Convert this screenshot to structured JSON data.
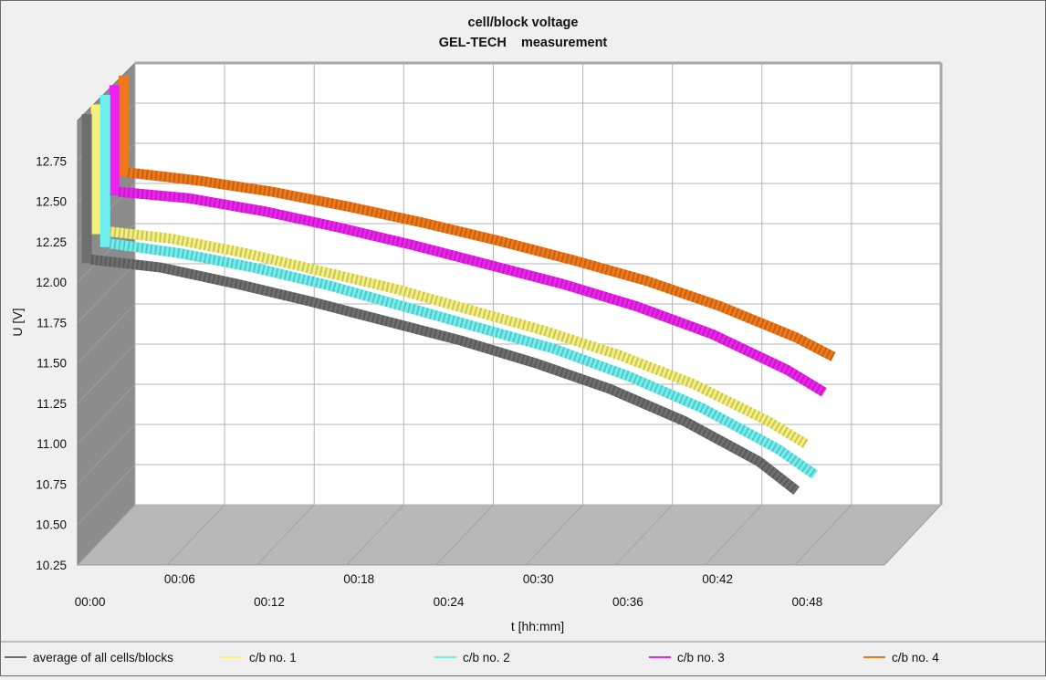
{
  "chart_data": {
    "type": "line",
    "title": "cell/block voltage",
    "subtitle": "GEL-TECH    measurement",
    "xlabel": "t [hh:mm]",
    "ylabel": "U [V]",
    "x_ticks": [
      "00:00",
      "00:06",
      "00:12",
      "00:18",
      "00:24",
      "00:30",
      "00:36",
      "00:42",
      "00:48"
    ],
    "y_ticks": [
      "10.25",
      "10.50",
      "10.75",
      "11.00",
      "11.25",
      "11.50",
      "11.75",
      "12.00",
      "12.25",
      "12.50",
      "12.75"
    ],
    "ylim": [
      10.25,
      13.0
    ],
    "xlim_minutes": [
      0,
      54
    ],
    "grid": true,
    "legend_position": "bottom",
    "x_minutes": [
      0.3,
      5,
      10,
      15,
      20,
      25,
      30,
      35,
      40,
      45,
      47.5
    ],
    "series": [
      {
        "name": "average of all cells/blocks",
        "color": "#6e6e6e",
        "start": 12.98,
        "values": [
          12.08,
          12.03,
          11.93,
          11.82,
          11.7,
          11.58,
          11.44,
          11.28,
          11.08,
          10.83,
          10.65
        ]
      },
      {
        "name": "c/b no. 1",
        "color": "#f5f07a",
        "start": 12.98,
        "values": [
          12.2,
          12.15,
          12.06,
          11.95,
          11.84,
          11.71,
          11.58,
          11.43,
          11.25,
          11.02,
          10.88
        ]
      },
      {
        "name": "c/b no. 2",
        "color": "#6ef0f0",
        "start": 12.98,
        "values": [
          12.06,
          12.0,
          11.91,
          11.8,
          11.67,
          11.54,
          11.41,
          11.24,
          11.04,
          10.79,
          10.63
        ]
      },
      {
        "name": "c/b no. 3",
        "color": "#ee22ee",
        "start": 12.98,
        "values": [
          12.32,
          12.28,
          12.2,
          12.1,
          11.99,
          11.87,
          11.75,
          11.61,
          11.44,
          11.22,
          11.08
        ]
      },
      {
        "name": "c/b no. 4",
        "color": "#f07818",
        "start": 12.98,
        "values": [
          12.38,
          12.33,
          12.26,
          12.17,
          12.07,
          11.96,
          11.84,
          11.71,
          11.55,
          11.36,
          11.24
        ]
      }
    ]
  }
}
